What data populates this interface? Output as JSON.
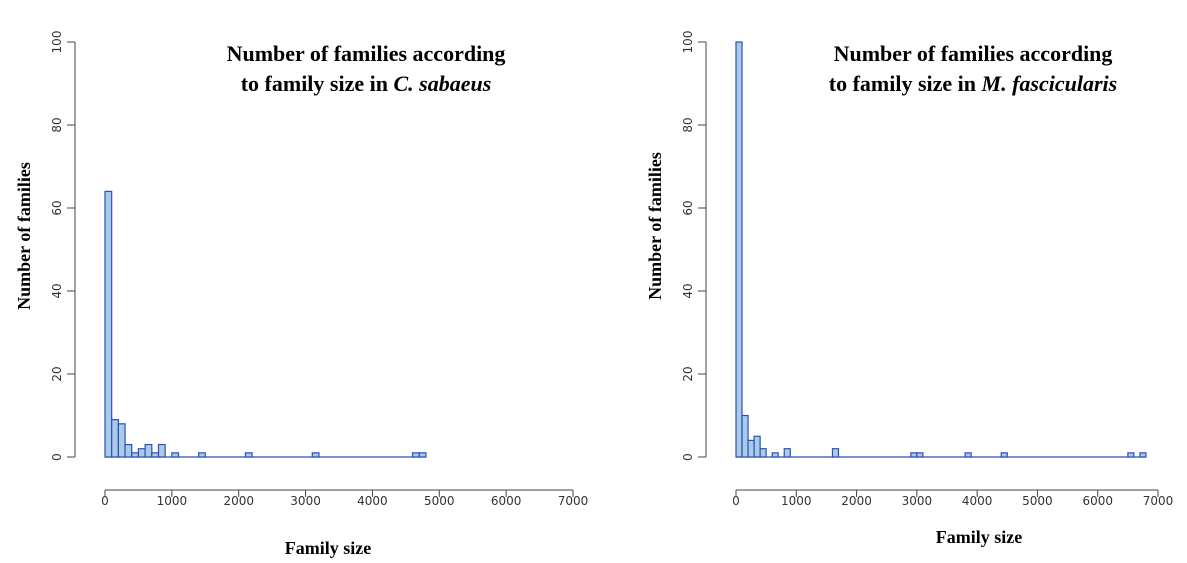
{
  "chart_data": [
    {
      "type": "bar",
      "title_line1": "Number of families according",
      "title_line2_prefix": "to family size in ",
      "title_line2_species": "C. sabaeus",
      "xlabel": "Family size",
      "ylabel": "Number of families",
      "xlim": [
        0,
        7000
      ],
      "ylim": [
        0,
        100
      ],
      "xticks": [
        "0",
        "1000",
        "2000",
        "3000",
        "4000",
        "5000",
        "6000",
        "7000"
      ],
      "yticks": [
        "0",
        "20",
        "40",
        "60",
        "80",
        "100"
      ],
      "bin_width": 100,
      "bin_range": [
        0,
        4800
      ],
      "bins": [
        {
          "start": 0,
          "count": 64
        },
        {
          "start": 100,
          "count": 9
        },
        {
          "start": 200,
          "count": 8
        },
        {
          "start": 300,
          "count": 3
        },
        {
          "start": 400,
          "count": 1
        },
        {
          "start": 500,
          "count": 2
        },
        {
          "start": 600,
          "count": 3
        },
        {
          "start": 700,
          "count": 1
        },
        {
          "start": 800,
          "count": 3
        },
        {
          "start": 1000,
          "count": 1
        },
        {
          "start": 1400,
          "count": 1
        },
        {
          "start": 2100,
          "count": 1
        },
        {
          "start": 3100,
          "count": 1
        },
        {
          "start": 4600,
          "count": 1
        },
        {
          "start": 4700,
          "count": 1
        }
      ]
    },
    {
      "type": "bar",
      "title_line1": "Number of families according",
      "title_line2_prefix": "to family size in ",
      "title_line2_species": "M. fascicularis",
      "xlabel": "Family size",
      "ylabel": "Number of families",
      "xlim": [
        0,
        7000
      ],
      "ylim": [
        0,
        100
      ],
      "xticks": [
        "0",
        "1000",
        "2000",
        "3000",
        "4000",
        "5000",
        "6000",
        "7000"
      ],
      "yticks": [
        "0",
        "20",
        "40",
        "60",
        "80",
        "100"
      ],
      "bin_width": 100,
      "bin_range": [
        0,
        6800
      ],
      "bins": [
        {
          "start": 0,
          "count": 100
        },
        {
          "start": 100,
          "count": 10
        },
        {
          "start": 200,
          "count": 4
        },
        {
          "start": 300,
          "count": 5
        },
        {
          "start": 400,
          "count": 2
        },
        {
          "start": 600,
          "count": 1
        },
        {
          "start": 800,
          "count": 2
        },
        {
          "start": 1600,
          "count": 2
        },
        {
          "start": 2900,
          "count": 1
        },
        {
          "start": 3000,
          "count": 1
        },
        {
          "start": 3800,
          "count": 1
        },
        {
          "start": 4400,
          "count": 1
        },
        {
          "start": 6500,
          "count": 1
        },
        {
          "start": 6700,
          "count": 1
        }
      ]
    }
  ]
}
